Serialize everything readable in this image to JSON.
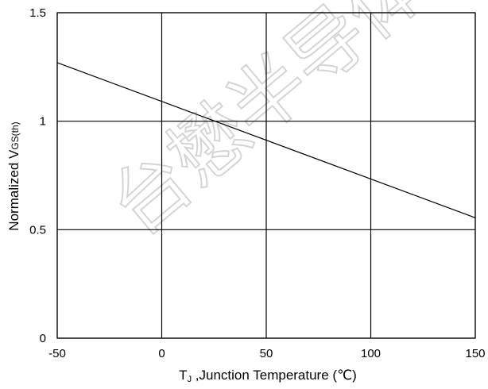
{
  "chart_data": {
    "type": "line",
    "xlabel_main": "T",
    "xlabel_sub": "J",
    "xlabel_rest": " ,Junction Temperature (",
    "xlabel_unit": "℃",
    "xlabel_close": ")",
    "ylabel_main": "Normalized V",
    "ylabel_sub": "GS(th)",
    "xlim": [
      -50,
      150
    ],
    "ylim": [
      0,
      1.5
    ],
    "x_ticks": [
      -50,
      0,
      50,
      100,
      150
    ],
    "x_tick_labels": [
      "-50",
      "0",
      "50",
      "100",
      "150"
    ],
    "y_ticks": [
      0,
      0.5,
      1,
      1.5
    ],
    "y_tick_labels": [
      "0",
      "0.5",
      "1",
      "1.5"
    ],
    "grid": true,
    "series": [
      {
        "x": [
          -50,
          150
        ],
        "y": [
          1.27,
          0.555
        ],
        "color": "#000000"
      }
    ],
    "watermark": "台懋半导体"
  }
}
